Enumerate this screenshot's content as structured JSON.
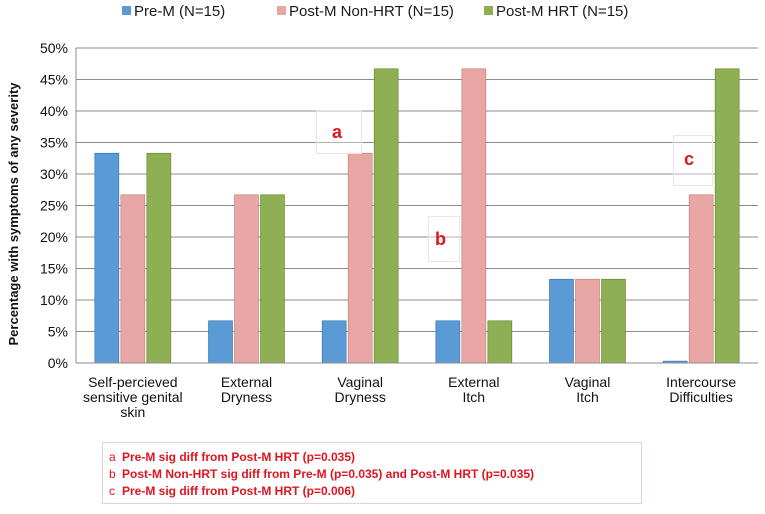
{
  "chart_data": {
    "type": "bar",
    "ylabel": "Percentage with symptoms of any severity",
    "xlabel": "",
    "title": "",
    "ylim": [
      0,
      50
    ],
    "y_ticks": [
      "0%",
      "5%",
      "10%",
      "15%",
      "20%",
      "25%",
      "30%",
      "35%",
      "40%",
      "45%",
      "50%"
    ],
    "grid": true,
    "legend_position": "top",
    "categories": [
      [
        "Self-percieved",
        "sensitive genital",
        "skin"
      ],
      [
        "External",
        "Dryness"
      ],
      [
        "Vaginal",
        "Dryness"
      ],
      [
        "External",
        "Itch"
      ],
      [
        "Vaginal",
        "Itch"
      ],
      [
        "Intercourse",
        "Difficulties"
      ]
    ],
    "series": [
      {
        "name": "Pre-M (N=15)",
        "color": "#5b9bd5",
        "values": [
          33.3,
          6.7,
          6.7,
          6.7,
          13.3,
          0.3
        ]
      },
      {
        "name": "Post-M Non-HRT (N=15)",
        "color": "#e8a7a5",
        "values": [
          26.7,
          26.7,
          33.3,
          46.7,
          13.3,
          26.7
        ]
      },
      {
        "name": "Post-M HRT (N=15)",
        "color": "#8faf54",
        "values": [
          33.3,
          26.7,
          46.7,
          6.7,
          13.3,
          46.7
        ]
      }
    ],
    "annotations": [
      {
        "label": "a",
        "category": 2
      },
      {
        "label": "b",
        "category": 3
      },
      {
        "label": "c",
        "category": 5
      }
    ],
    "notes": [
      {
        "letter": "a",
        "text": "Pre-M sig diff from Post-M HRT (p=0.035)"
      },
      {
        "letter": "b",
        "text": "Post-M Non-HRT sig diff from Pre-M (p=0.035) and Post-M HRT (p=0.035)"
      },
      {
        "letter": "c",
        "text": "Pre-M sig diff from Post-M HRT (p=0.006)"
      }
    ]
  }
}
